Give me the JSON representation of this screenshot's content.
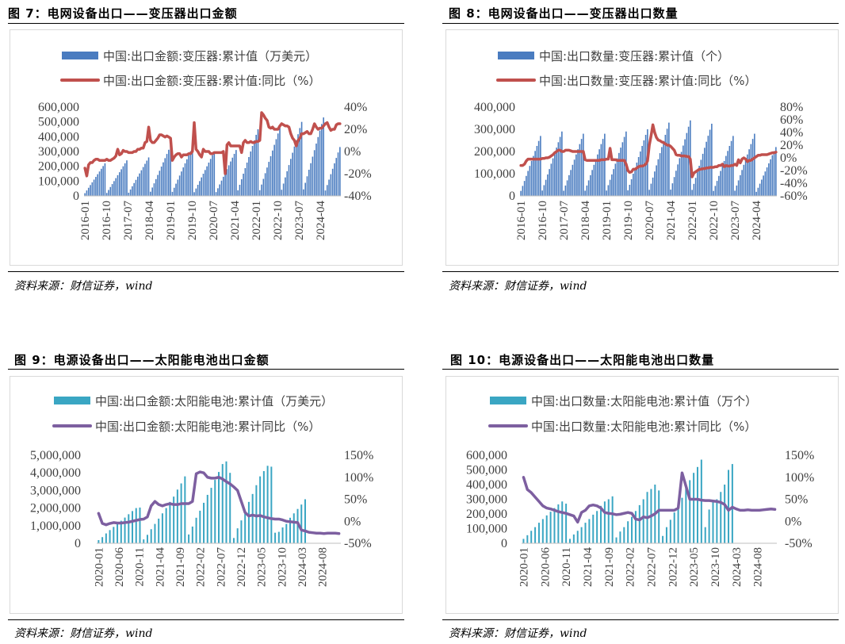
{
  "colors": {
    "bar_blue": "#4a7cc0",
    "bar_teal": "#3aa6c3",
    "line_red": "#c0504d",
    "line_purple": "#7d5fa0",
    "panel_border": "#d9d9d9",
    "text": "#000000",
    "tick_text": "#404040"
  },
  "figures": [
    {
      "title": "图 7：电网设备出口——变压器出口金额",
      "source": "资料来源：财信证券，wind"
    },
    {
      "title": "图 8：电网设备出口——变压器出口数量",
      "source": "资料来源：财信证券，wind"
    },
    {
      "title": "图 9：电源设备出口——太阳能电池出口金额",
      "source": "资料来源：财信证券，wind"
    },
    {
      "title": "图 10：电源设备出口——太阳能电池出口数量",
      "source": "资料来源：财信证券，wind"
    }
  ],
  "chart_data": [
    {
      "type": "bar",
      "combo": "bar + line, dual y-axis",
      "legend_position": "top-left",
      "grid": false,
      "x_start": "2016-01",
      "x_tick_labels": [
        "2016-01",
        "2016-10",
        "2017-07",
        "2018-04",
        "2019-01",
        "2019-10",
        "2020-07",
        "2021-04",
        "2022-01",
        "2022-10",
        "2023-07",
        "2024-04"
      ],
      "y_left": {
        "ticks": [
          "0",
          "100,000",
          "200,000",
          "300,000",
          "400,000",
          "500,000",
          "600,000"
        ],
        "range": [
          0,
          600000
        ]
      },
      "y_right": {
        "ticks": [
          "-40%",
          "-20%",
          "0%",
          "20%",
          "40%"
        ],
        "range": [
          -40,
          40
        ]
      },
      "series": [
        {
          "name": "中国:出口金额:变压器:累计值（万美元）",
          "kind": "bar",
          "color": "#4a7cc0",
          "peaks": [
            220000,
            240000,
            260000,
            340000,
            330000,
            300000,
            310000,
            450000,
            460000,
            500000,
            530000
          ],
          "last_value": 440000
        },
        {
          "name": "中国:出口金额:变压器:累计值:同比（%）",
          "kind": "line",
          "color": "#c0504d",
          "values": [
            -15,
            -22,
            -12,
            -10,
            -10,
            -8,
            -7,
            -7,
            -8,
            -8,
            -8,
            -8,
            -7,
            -8,
            -8,
            -7,
            -6,
            -4,
            2,
            -3,
            -2,
            1,
            0,
            0,
            -1,
            -1,
            -1,
            0,
            0,
            2,
            2,
            3,
            3,
            8,
            9,
            22,
            10,
            8,
            8,
            10,
            12,
            15,
            15,
            14,
            13,
            14,
            13,
            12,
            -8,
            -5,
            -3,
            -2,
            -2,
            -5,
            -3,
            -3,
            -3,
            -2,
            -2,
            0,
            26,
            2,
            0,
            -3,
            -5,
            2,
            0,
            0,
            0,
            -2,
            -2,
            -1,
            -1,
            -1,
            -1,
            -1,
            0,
            -20,
            6,
            8,
            5,
            5,
            5,
            5,
            5,
            5,
            -1,
            8,
            10,
            8,
            8,
            9,
            8,
            8,
            9,
            9,
            10,
            35,
            33,
            30,
            28,
            22,
            21,
            22,
            20,
            20,
            20,
            23,
            25,
            24,
            23,
            23,
            22,
            16,
            12,
            10,
            5,
            10,
            12,
            16,
            16,
            17,
            18,
            16,
            16,
            20,
            25,
            22,
            20,
            21,
            21,
            23,
            25,
            26,
            22,
            19,
            20,
            20,
            24,
            25,
            25
          ]
        }
      ]
    },
    {
      "type": "bar",
      "combo": "bar + line, dual y-axis",
      "legend_position": "top-left",
      "grid": false,
      "x_start": "2016-01",
      "x_tick_labels": [
        "2016-01",
        "2016-10",
        "2017-07",
        "2018-04",
        "2019-01",
        "2019-10",
        "2020-07",
        "2021-04",
        "2022-01",
        "2022-10",
        "2023-07",
        "2024-04"
      ],
      "y_left": {
        "ticks": [
          "0",
          "100,000",
          "200,000",
          "300,000",
          "400,000"
        ],
        "range": [
          0,
          400000
        ]
      },
      "y_right": {
        "ticks": [
          "-60%",
          "-40%",
          "-20%",
          "0%",
          "20%",
          "40%",
          "60%",
          "80%"
        ],
        "range": [
          -60,
          80
        ]
      },
      "series": [
        {
          "name": "中国:出口数量:变压器:累计值（个）",
          "kind": "bar",
          "color": "#4a7cc0",
          "peaks": [
            270000,
            290000,
            280000,
            280000,
            290000,
            300000,
            330000,
            340000,
            325000,
            270000,
            280000
          ],
          "last_value": 220000
        },
        {
          "name": "中国:出口数量:变压器:累计值:同比（%）",
          "kind": "line",
          "color": "#c0504d",
          "values": [
            -12,
            -12,
            -10,
            -5,
            -2,
            -2,
            -2,
            -2,
            -2,
            -2,
            -2,
            -2,
            -1,
            -1,
            0,
            0,
            1,
            3,
            5,
            8,
            10,
            12,
            12,
            10,
            10,
            12,
            12,
            12,
            11,
            10,
            10,
            10,
            10,
            10,
            10,
            10,
            -3,
            -4,
            -4,
            -4,
            -4,
            -4,
            -4,
            -4,
            -4,
            -3,
            -3,
            -3,
            -2,
            -2,
            15,
            -3,
            -3,
            -3,
            -4,
            -4,
            -4,
            -4,
            -4,
            -10,
            -20,
            -23,
            -22,
            -18,
            -18,
            -16,
            -14,
            -13,
            -13,
            -12,
            -10,
            -5,
            20,
            35,
            52,
            40,
            32,
            28,
            27,
            25,
            24,
            22,
            20,
            20,
            18,
            15,
            12,
            5,
            4,
            4,
            3,
            3,
            3,
            2,
            2,
            -2,
            -30,
            -24,
            -22,
            -20,
            -18,
            -18,
            -17,
            -17,
            -16,
            -16,
            -15,
            -15,
            -15,
            -14,
            -14,
            -12,
            -12,
            -10,
            -14,
            -12,
            -13,
            -13,
            -12,
            -12,
            -10,
            -12,
            -3,
            -8,
            -2,
            0,
            -2,
            -6,
            -4,
            -4,
            -2,
            0,
            2,
            4,
            4,
            5,
            5,
            5,
            5,
            6,
            7,
            8,
            8,
            9
          ]
        }
      ]
    },
    {
      "type": "bar",
      "combo": "bar + line, dual y-axis",
      "legend_position": "top-left",
      "grid": false,
      "x_start": "2020-01",
      "x_tick_labels": [
        "2020-01",
        "2020-06",
        "2020-11",
        "2021-04",
        "2021-09",
        "2022-02",
        "2022-07",
        "2022-12",
        "2023-05",
        "2023-10",
        "2024-03",
        "2024-08"
      ],
      "y_left": {
        "ticks": [
          "0",
          "1,000,000",
          "2,000,000",
          "3,000,000",
          "4,000,000",
          "5,000,000"
        ],
        "range": [
          0,
          5000000
        ]
      },
      "y_right": {
        "ticks": [
          "-50%",
          "0%",
          "50%",
          "100%",
          "150%"
        ],
        "range": [
          -50,
          150
        ]
      },
      "series": [
        {
          "name": "中国:出口金额:太阳能电池:累计值（万美元）",
          "kind": "bar",
          "color": "#3aa6c3",
          "values": [
            180000,
            350000,
            560000,
            750000,
            930000,
            1100000,
            1280000,
            1460000,
            1650000,
            1830000,
            2000000,
            2030000,
            220000,
            480000,
            800000,
            1100000,
            1400000,
            1700000,
            2000000,
            2350000,
            2650000,
            3050000,
            3400000,
            3800000,
            500000,
            950000,
            1450000,
            1850000,
            2300000,
            2750000,
            3150000,
            3600000,
            4050000,
            4500000,
            4650000,
            4000000,
            300000,
            850000,
            1300000,
            1800000,
            2350000,
            2800000,
            3300000,
            3800000,
            4100000,
            4400000,
            4350000,
            600000,
            650000,
            900000,
            1100000,
            1450000,
            1700000,
            1950000,
            2200000,
            2500000
          ]
        },
        {
          "name": "中国:出口金额:太阳能电池:累计同比（%）",
          "kind": "line",
          "color": "#7d5fa0",
          "values": [
            18,
            -5,
            -8,
            -5,
            -3,
            -4,
            -4,
            -3,
            -2,
            0,
            2,
            4,
            5,
            10,
            35,
            45,
            38,
            35,
            38,
            40,
            38,
            38,
            40,
            40,
            40,
            45,
            108,
            112,
            110,
            100,
            98,
            98,
            100,
            96,
            90,
            85,
            78,
            70,
            45,
            20,
            12,
            14,
            12,
            13,
            10,
            8,
            6,
            5,
            5,
            3,
            0,
            -1,
            -2,
            -3,
            -20,
            -22,
            -25,
            -26,
            -27,
            -27,
            -28,
            -27,
            -27,
            -27,
            -28
          ]
        }
      ]
    },
    {
      "type": "bar",
      "combo": "bar + line, dual y-axis",
      "legend_position": "top-left",
      "grid": false,
      "x_start": "2020-01",
      "x_tick_labels": [
        "2020-01",
        "2020-06",
        "2020-11",
        "2021-04",
        "2021-09",
        "2022-02",
        "2022-07",
        "2022-12",
        "2023-05",
        "2023-10",
        "2024-03",
        "2024-08"
      ],
      "y_left": {
        "ticks": [
          "0",
          "100,000",
          "200,000",
          "300,000",
          "400,000",
          "500,000",
          "600,000"
        ],
        "range": [
          0,
          600000
        ]
      },
      "y_right": {
        "ticks": [
          "-50%",
          "0%",
          "50%",
          "100%",
          "150%"
        ],
        "range": [
          -50,
          150
        ]
      },
      "series": [
        {
          "name": "中国:出口数量:太阳能电池:累计值（万个）",
          "kind": "bar",
          "color": "#3aa6c3",
          "values": [
            30000,
            55000,
            85000,
            110000,
            140000,
            165000,
            190000,
            215000,
            240000,
            265000,
            285000,
            270000,
            30000,
            60000,
            85000,
            110000,
            140000,
            165000,
            195000,
            220000,
            255000,
            285000,
            300000,
            320000,
            40000,
            80000,
            110000,
            150000,
            180000,
            220000,
            260000,
            300000,
            350000,
            370000,
            400000,
            360000,
            50000,
            110000,
            160000,
            210000,
            260000,
            310000,
            380000,
            430000,
            480000,
            520000,
            570000,
            110000,
            230000,
            280000,
            300000,
            350000,
            400000,
            500000,
            540000
          ]
        },
        {
          "name": "中国:出口数量:太阳能电池:累计同比（%）",
          "kind": "line",
          "color": "#7d5fa0",
          "values": [
            100,
            72,
            65,
            55,
            45,
            35,
            30,
            28,
            25,
            22,
            20,
            18,
            15,
            12,
            -2,
            20,
            25,
            35,
            37,
            35,
            30,
            20,
            18,
            17,
            15,
            16,
            18,
            20,
            18,
            5,
            3,
            10,
            8,
            12,
            17,
            25,
            25,
            25,
            25,
            25,
            30,
            110,
            80,
            50,
            50,
            50,
            48,
            47,
            47,
            46,
            45,
            43,
            38,
            25,
            32,
            28,
            25,
            25,
            26,
            25,
            25,
            25,
            26,
            27,
            28,
            27
          ]
        }
      ]
    }
  ]
}
